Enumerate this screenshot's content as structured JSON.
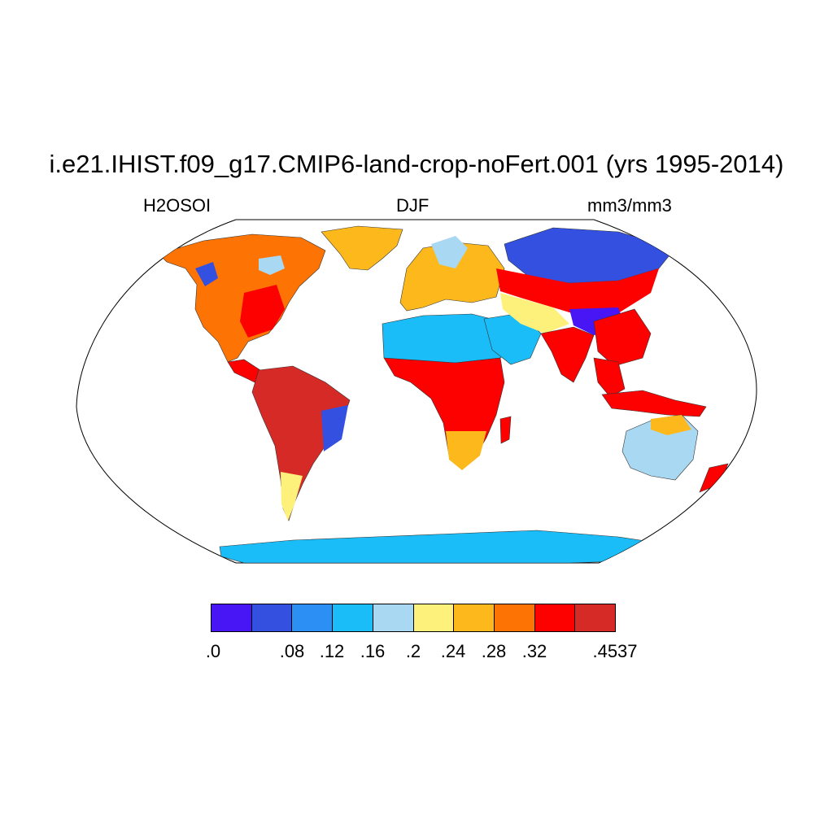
{
  "title": "i.e21.IHIST.f09_g17.CMIP6-land-crop-noFert.001 (yrs 1995-2014)",
  "subtitle_left": "H2OSOI",
  "subtitle_center": "DJF",
  "subtitle_right": "mm3/mm3",
  "colorbar": {
    "colors": [
      "#4816f5",
      "#3350e0",
      "#2c8ff4",
      "#1bbdf8",
      "#a8d8f2",
      "#fdf17c",
      "#fdb91b",
      "#fd7405",
      "#fd0000",
      "#d62a27"
    ],
    "tick_labels": [
      ".0",
      ".08",
      ".12",
      ".16",
      ".2",
      ".24",
      ".28",
      ".32",
      ".4537"
    ]
  },
  "map": {
    "projection": "robinson",
    "variable": "H2OSOI",
    "season": "DJF",
    "units": "mm3/mm3",
    "regions": [
      {
        "name": "North America",
        "level": 7
      },
      {
        "name": "Central America",
        "level": 8
      },
      {
        "name": "South America",
        "level": 9
      },
      {
        "name": "Greenland",
        "level": 7
      },
      {
        "name": "Europe",
        "level": 6
      },
      {
        "name": "Sahara & Arabia",
        "level": 3
      },
      {
        "name": "Central Africa",
        "level": 8
      },
      {
        "name": "Southern Africa",
        "level": 6
      },
      {
        "name": "Siberia",
        "level": 1
      },
      {
        "name": "Central Asia",
        "level": 5
      },
      {
        "name": "Tibet",
        "level": 0
      },
      {
        "name": "India & SE Asia",
        "level": 8
      },
      {
        "name": "Indonesia",
        "level": 8
      },
      {
        "name": "Australia",
        "level": 4
      },
      {
        "name": "New Zealand",
        "level": 8
      },
      {
        "name": "Antarctica coast",
        "level": 3
      }
    ]
  }
}
